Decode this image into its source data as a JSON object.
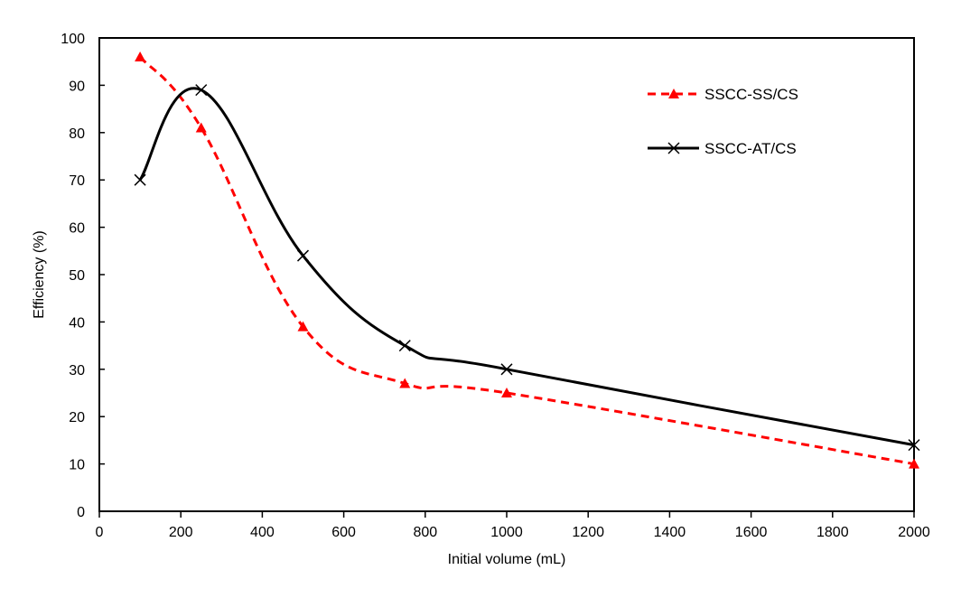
{
  "chart_data": {
    "type": "line",
    "title": "",
    "xlabel": "Initial volume (mL)",
    "ylabel": "Efficiency (%)",
    "xlim": [
      0,
      2000
    ],
    "ylim": [
      0,
      100
    ],
    "xticks": [
      0,
      200,
      400,
      600,
      800,
      1000,
      1200,
      1400,
      1600,
      1800,
      2000
    ],
    "yticks": [
      0,
      10,
      20,
      30,
      40,
      50,
      60,
      70,
      80,
      90,
      100
    ],
    "grid": false,
    "legend_position": "top-right",
    "series": [
      {
        "name": "SSCC-SS/CS",
        "color": "#ff0000",
        "line_style": "dashed",
        "marker": "triangle",
        "x": [
          100,
          250,
          500,
          750,
          1000,
          2000
        ],
        "y": [
          96,
          81,
          39,
          27,
          25,
          10
        ]
      },
      {
        "name": "SSCC-AT/CS",
        "color": "#000000",
        "line_style": "solid",
        "marker": "x",
        "x": [
          100,
          250,
          500,
          750,
          1000,
          2000
        ],
        "y": [
          70,
          89,
          54,
          35,
          30,
          14
        ]
      }
    ]
  }
}
